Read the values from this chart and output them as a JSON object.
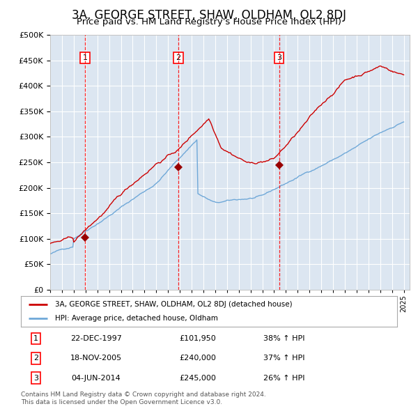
{
  "title": "3A, GEORGE STREET, SHAW, OLDHAM, OL2 8DJ",
  "subtitle": "Price paid vs. HM Land Registry's House Price Index (HPI)",
  "title_fontsize": 12,
  "subtitle_fontsize": 9.5,
  "plot_bg_color": "#dce6f1",
  "fig_bg_color": "#ffffff",
  "hpi_color": "#6fa8d8",
  "price_color": "#cc0000",
  "sale_marker_color": "#990000",
  "ylim": [
    0,
    500000
  ],
  "ytick_step": 50000,
  "x_start_year": 1995,
  "x_end_year": 2025,
  "sales": [
    {
      "num": 1,
      "date": "22-DEC-1997",
      "price": 101950,
      "price_str": "£101,950",
      "pct": "38%",
      "year": 1997.97
    },
    {
      "num": 2,
      "date": "18-NOV-2005",
      "price": 240000,
      "price_str": "£240,000",
      "pct": "37%",
      "year": 2005.88
    },
    {
      "num": 3,
      "date": "04-JUN-2014",
      "price": 245000,
      "price_str": "£245,000",
      "pct": "26%",
      "year": 2014.42
    }
  ],
  "legend_entry1": "3A, GEORGE STREET, SHAW, OLDHAM, OL2 8DJ (detached house)",
  "legend_entry2": "HPI: Average price, detached house, Oldham",
  "footer1": "Contains HM Land Registry data © Crown copyright and database right 2024.",
  "footer2": "This data is licensed under the Open Government Licence v3.0."
}
